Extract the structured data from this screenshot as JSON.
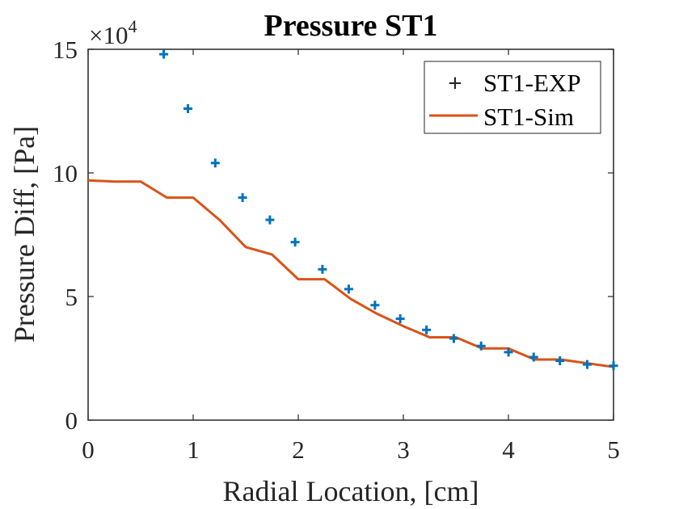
{
  "chart_data": {
    "type": "line",
    "title": "Pressure ST1",
    "xlabel": "Radial Location, [cm]",
    "ylabel": "Pressure Diff, [Pa]",
    "xlim": [
      0,
      5
    ],
    "ylim": [
      0,
      150000
    ],
    "x_ticks": [
      0,
      1,
      2,
      3,
      4,
      5
    ],
    "y_ticks": [
      0,
      50000,
      100000,
      150000
    ],
    "y_tick_labels": [
      "0",
      "5",
      "10",
      "15"
    ],
    "y_exponent_base": "×10",
    "y_exponent": "4",
    "grid": false,
    "legend_position": "top-right",
    "series": [
      {
        "name": "ST1-EXP",
        "style": "markers-plus",
        "color": "#0072BD",
        "x": [
          0.72,
          0.95,
          1.21,
          1.47,
          1.73,
          1.97,
          2.23,
          2.48,
          2.73,
          2.97,
          3.22,
          3.48,
          3.74,
          4.0,
          4.24,
          4.49,
          4.75,
          5.0
        ],
        "y": [
          148000,
          126000,
          104000,
          90000,
          81000,
          72000,
          61000,
          53000,
          46500,
          41000,
          36500,
          33000,
          30000,
          27500,
          25500,
          24000,
          22500,
          22000
        ]
      },
      {
        "name": "ST1-Sim",
        "style": "line",
        "color": "#D95319",
        "x": [
          0,
          0.25,
          0.5,
          0.75,
          1.0,
          1.25,
          1.5,
          1.75,
          2.0,
          2.25,
          2.5,
          2.75,
          3.0,
          3.25,
          3.5,
          3.75,
          4.0,
          4.25,
          4.5,
          4.75,
          5.0
        ],
        "y": [
          97000,
          96500,
          96500,
          90000,
          90000,
          81000,
          70000,
          67000,
          57000,
          57000,
          49000,
          43000,
          38000,
          33500,
          33500,
          29000,
          29000,
          24500,
          24500,
          23000,
          21500
        ]
      }
    ]
  }
}
